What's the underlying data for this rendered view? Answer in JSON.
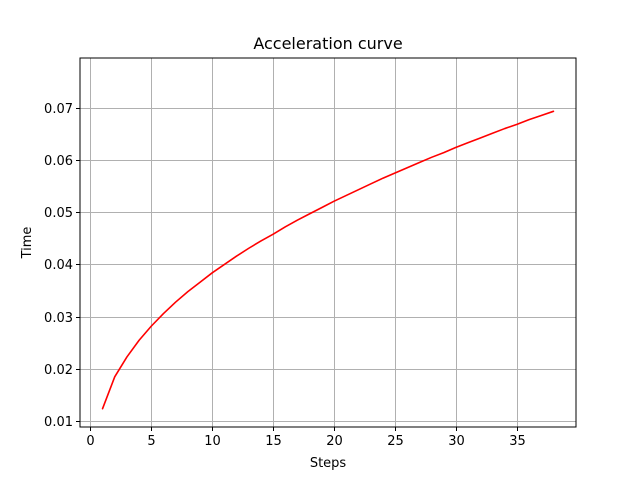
{
  "chart_data": {
    "type": "line",
    "title": "Acceleration curve",
    "xlabel": "Steps",
    "ylabel": "Time",
    "xlim": [
      -0.85,
      39.85
    ],
    "ylim": [
      0.0089,
      0.0795
    ],
    "xticks": [
      0,
      5,
      10,
      15,
      20,
      25,
      30,
      35
    ],
    "yticks": [
      0.01,
      0.02,
      0.03,
      0.04,
      0.05,
      0.06,
      0.07
    ],
    "xtick_labels": [
      "0",
      "5",
      "10",
      "15",
      "20",
      "25",
      "30",
      "35"
    ],
    "ytick_labels": [
      "0.01",
      "0.02",
      "0.03",
      "0.04",
      "0.05",
      "0.06",
      "0.07"
    ],
    "grid": true,
    "series": [
      {
        "color": "#ff0000",
        "x": [
          1,
          2,
          3,
          4,
          5,
          6,
          7,
          8,
          9,
          10,
          11,
          12,
          13,
          14,
          15,
          16,
          17,
          18,
          19,
          20,
          21,
          22,
          23,
          24,
          25,
          26,
          27,
          28,
          29,
          30,
          31,
          32,
          33,
          34,
          35,
          36,
          37,
          38
        ],
        "y": [
          0.0124,
          0.0185,
          0.0223,
          0.0255,
          0.0282,
          0.0306,
          0.0328,
          0.0348,
          0.0366,
          0.0384,
          0.04,
          0.0416,
          0.0431,
          0.0445,
          0.0458,
          0.0472,
          0.0485,
          0.0497,
          0.0509,
          0.0521,
          0.0532,
          0.0543,
          0.0554,
          0.0565,
          0.0575,
          0.0585,
          0.0595,
          0.0605,
          0.0614,
          0.0624,
          0.0633,
          0.0642,
          0.0651,
          0.066,
          0.0668,
          0.0677,
          0.0685,
          0.0693
        ]
      }
    ]
  }
}
